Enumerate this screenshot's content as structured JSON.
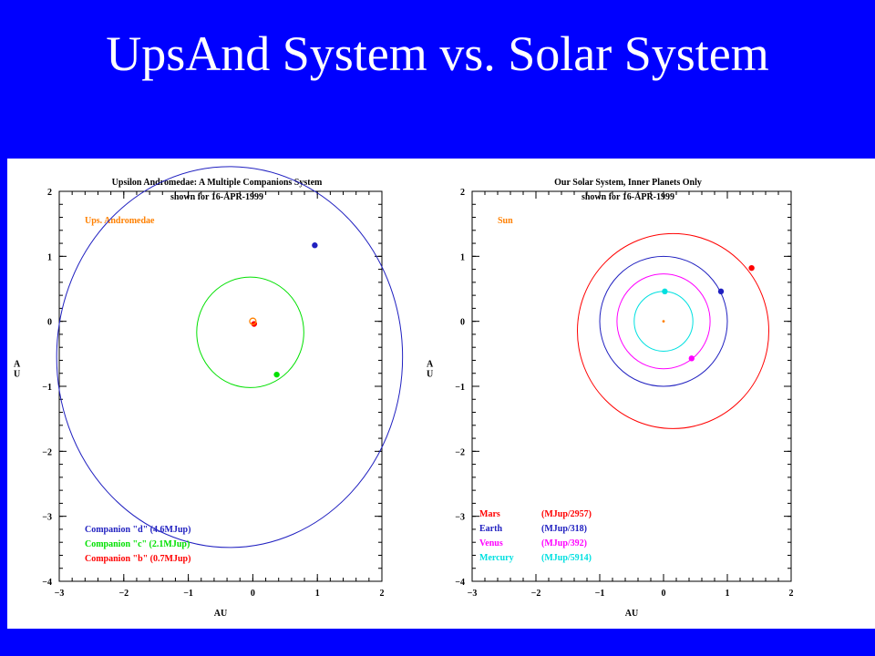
{
  "slide": {
    "title": "UpsAnd System vs. Solar System"
  },
  "chart_data": [
    {
      "type": "scatter",
      "title": "Upsilon Andromedae: A Multiple Companions System",
      "subtitle": "shown for 16-APR-1999",
      "xlabel": "AU",
      "ylabel": "A\nU",
      "xlim": [
        -3,
        2
      ],
      "ylim": [
        -4,
        2
      ],
      "xticks": [
        -3,
        -2,
        -1,
        0,
        1,
        2
      ],
      "yticks": [
        -4,
        -3,
        -2,
        -1,
        0,
        1,
        2
      ],
      "star": {
        "label": "Ups. Andromedae",
        "x": 0,
        "y": 0,
        "color": "#ff8000"
      },
      "orbits": [
        {
          "name": "Companion \"d\" (4.6MJup)",
          "cx": -0.36,
          "cy": -0.55,
          "rx": 2.68,
          "ry": 2.93,
          "color": "#2020c0",
          "planet": {
            "x": 0.96,
            "y": 1.17
          }
        },
        {
          "name": "Companion \"c\" (2.1MJup)",
          "cx": -0.04,
          "cy": -0.17,
          "rx": 0.83,
          "ry": 0.85,
          "color": "#00e000",
          "planet": {
            "x": 0.37,
            "y": -0.82
          }
        },
        {
          "name": "Companion \"b\" (0.7MJup)",
          "cx": 0.0,
          "cy": -0.02,
          "rx": 0.03,
          "ry": 0.03,
          "color": "#ff0000",
          "planet": {
            "x": 0.02,
            "y": -0.04
          }
        }
      ]
    },
    {
      "type": "scatter",
      "title": "Our Solar System, Inner Planets Only",
      "subtitle": "shown for 16-APR-1999",
      "xlabel": "AU",
      "ylabel": "A\nU",
      "xlim": [
        -3,
        2
      ],
      "ylim": [
        -4,
        2
      ],
      "xticks": [
        -3,
        -2,
        -1,
        0,
        1,
        2
      ],
      "yticks": [
        -4,
        -3,
        -2,
        -1,
        0,
        1,
        2
      ],
      "star": {
        "label": "Sun",
        "x": 0,
        "y": 0,
        "color": "#ff8000"
      },
      "orbits": [
        {
          "name": "Mars",
          "mass": "(MJup/2957)",
          "cx": 0.15,
          "cy": -0.15,
          "rx": 1.5,
          "ry": 1.5,
          "color": "#ff0000",
          "planet": {
            "x": 1.38,
            "y": 0.82
          }
        },
        {
          "name": "Earth",
          "mass": "(MJup/318)",
          "cx": 0.0,
          "cy": 0.0,
          "rx": 1.0,
          "ry": 1.0,
          "color": "#2020c0",
          "planet": {
            "x": 0.9,
            "y": 0.46
          }
        },
        {
          "name": "Venus",
          "mass": "(MJup/392)",
          "cx": 0.0,
          "cy": 0.0,
          "rx": 0.73,
          "ry": 0.73,
          "color": "#ff00ff",
          "planet": {
            "x": 0.44,
            "y": -0.57
          }
        },
        {
          "name": "Mercury",
          "mass": "(MJup/5914)",
          "cx": 0.0,
          "cy": 0.0,
          "rx": 0.46,
          "ry": 0.46,
          "color": "#00e0e0",
          "planet": {
            "x": 0.02,
            "y": 0.46
          }
        }
      ]
    }
  ]
}
